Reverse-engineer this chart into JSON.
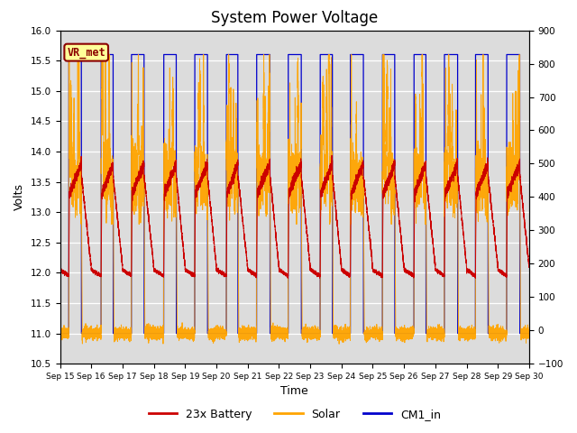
{
  "title": "System Power Voltage",
  "xlabel": "Time",
  "ylabel_left": "Volts",
  "ylim_left": [
    10.5,
    16.0
  ],
  "ylim_right": [
    -100,
    900
  ],
  "yticks_left": [
    10.5,
    11.0,
    11.5,
    12.0,
    12.5,
    13.0,
    13.5,
    14.0,
    14.5,
    15.0,
    15.5,
    16.0
  ],
  "yticks_right": [
    -100,
    0,
    100,
    200,
    300,
    400,
    500,
    600,
    700,
    800,
    900
  ],
  "xtick_labels": [
    "Sep 15",
    "Sep 16",
    "Sep 17",
    "Sep 18",
    "Sep 19",
    "Sep 20",
    "Sep 21",
    "Sep 22",
    "Sep 23",
    "Sep 24",
    "Sep 25",
    "Sep 26",
    "Sep 27",
    "Sep 28",
    "Sep 29",
    "Sep 30"
  ],
  "color_battery": "#CC0000",
  "color_solar": "#FFA500",
  "color_cm1": "#0000CC",
  "legend_labels": [
    "23x Battery",
    "Solar",
    "CM1_in"
  ],
  "annotation_text": "VR_met",
  "annotation_color": "#8B0000",
  "annotation_bg": "#FFFF99",
  "bg_color": "#DCDCDC",
  "title_fontsize": 12,
  "label_fontsize": 9,
  "n_days": 15,
  "points_per_day": 720
}
